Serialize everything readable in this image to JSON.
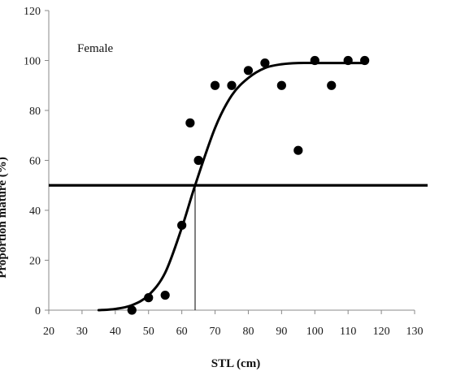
{
  "chart_data": {
    "type": "scatter",
    "title": "",
    "xlabel": "STL (cm)",
    "ylabel": "Proportion mature (%)",
    "xlim": [
      20,
      130
    ],
    "ylim": [
      0,
      120
    ],
    "x_ticks": [
      20,
      30,
      40,
      50,
      60,
      70,
      80,
      90,
      100,
      110,
      120,
      130
    ],
    "y_ticks": [
      0,
      20,
      40,
      60,
      80,
      100,
      120
    ],
    "grid": false,
    "legend": "none",
    "annotations": [
      {
        "text": "Female"
      }
    ],
    "series": [
      {
        "type": "scatter",
        "x": [
          45,
          50,
          55,
          60,
          62.5,
          65,
          70,
          75,
          80,
          85,
          90,
          95,
          100,
          105,
          110,
          115
        ],
        "y": [
          0,
          5,
          6,
          34,
          75,
          60,
          90,
          90,
          96,
          99,
          90,
          64,
          100,
          90,
          100,
          100
        ]
      },
      {
        "type": "line",
        "fit": "logistic",
        "x": [
          35,
          40,
          45,
          50,
          55,
          60,
          64,
          70,
          75,
          80,
          85,
          90,
          95,
          100,
          105,
          110,
          115
        ],
        "y": [
          0,
          0.5,
          2,
          6,
          15,
          33,
          50,
          73,
          86,
          93,
          97,
          98.5,
          99,
          99,
          99,
          99,
          99
        ]
      }
    ],
    "reference_lines": [
      {
        "orientation": "horizontal",
        "y": 50
      },
      {
        "orientation": "vertical",
        "x": 64,
        "y_from": 0,
        "y_to": 50
      }
    ],
    "colors": {
      "marks": "#000000",
      "text": "#1a1a1a"
    }
  }
}
